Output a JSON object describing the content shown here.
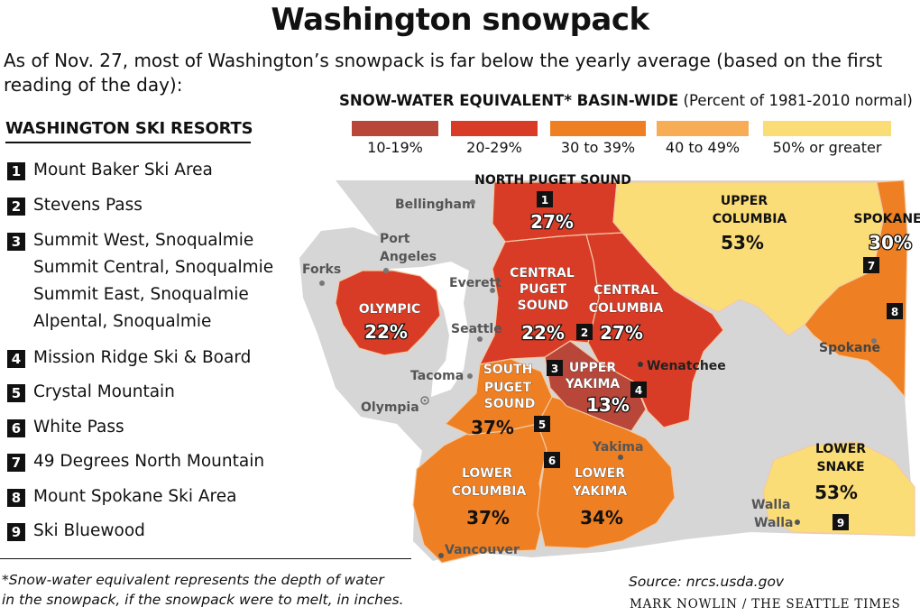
{
  "title": "Washington snowpack",
  "subtitle": "As of Nov. 27, most of Washington’s snowpack is far below the yearly average (based on the first reading of the day):",
  "legend": {
    "title_bold": "SNOW-WATER EQUIVALENT* BASIN-WIDE",
    "title_rest": " (Percent of 1981-2010 normal)",
    "items": [
      {
        "label": "10-19%",
        "color": "#b8473a"
      },
      {
        "label": "20-29%",
        "color": "#d93c26"
      },
      {
        "label": "30 to 39%",
        "color": "#ee7f22"
      },
      {
        "label": "40 to 49%",
        "color": "#f6ad55"
      },
      {
        "label": "50% or greater",
        "color": "#fbdd78"
      }
    ]
  },
  "resorts": {
    "title": "WASHINGTON SKI RESORTS",
    "items": [
      {
        "num": "1",
        "lines": [
          "Mount Baker Ski Area"
        ]
      },
      {
        "num": "2",
        "lines": [
          "Stevens Pass"
        ]
      },
      {
        "num": "3",
        "lines": [
          "Summit West, Snoqualmie",
          "Summit Central, Snoqualmie",
          "Summit East, Snoqualmie",
          "Alpental, Snoqualmie"
        ]
      },
      {
        "num": "4",
        "lines": [
          "Mission Ridge Ski & Board"
        ]
      },
      {
        "num": "5",
        "lines": [
          "Crystal Mountain"
        ]
      },
      {
        "num": "6",
        "lines": [
          "White Pass"
        ]
      },
      {
        "num": "7",
        "lines": [
          "49 Degrees North Mountain"
        ]
      },
      {
        "num": "8",
        "lines": [
          "Mount Spokane Ski Area"
        ]
      },
      {
        "num": "9",
        "lines": [
          "Ski Bluewood"
        ]
      }
    ]
  },
  "basins": {
    "north_puget": {
      "name": [
        "NORTH PUGET SOUND"
      ],
      "pct": "27%"
    },
    "upper_columbia": {
      "name": [
        "UPPER",
        "COLUMBIA"
      ],
      "pct": "53%"
    },
    "spokane": {
      "name": [
        "SPOKANE"
      ],
      "pct": "30%"
    },
    "olympic": {
      "name": [
        "OLYMPIC"
      ],
      "pct": "22%"
    },
    "central_puget": {
      "name": [
        "CENTRAL",
        "PUGET",
        "SOUND"
      ],
      "pct": "22%"
    },
    "central_columbia": {
      "name": [
        "CENTRAL",
        "COLUMBIA"
      ],
      "pct": "27%"
    },
    "upper_yakima": {
      "name": [
        "UPPER",
        "YAKIMA"
      ],
      "pct": "13%"
    },
    "south_puget": {
      "name": [
        "SOUTH",
        "PUGET",
        "SOUND"
      ],
      "pct": "37%"
    },
    "lower_columbia": {
      "name": [
        "LOWER",
        "COLUMBIA"
      ],
      "pct": "37%"
    },
    "lower_yakima": {
      "name": [
        "LOWER",
        "YAKIMA"
      ],
      "pct": "34%"
    },
    "lower_snake": {
      "name": [
        "LOWER",
        "SNAKE"
      ],
      "pct": "53%"
    }
  },
  "cities": [
    "Bellingham",
    "Port",
    "Angeles",
    "Forks",
    "Everett",
    "Seattle",
    "Tacoma",
    "Olympia",
    "Wenatchee",
    "Spokane",
    "Yakima",
    "Vancouver",
    "Walla",
    "Walla"
  ],
  "colors": {
    "land": "#d6d6d6",
    "water": "#ffffff"
  },
  "footnote": [
    "*Snow-water equivalent represents the depth of water",
    "in the snowpack, if the snowpack were to melt, in inches."
  ],
  "source": "Source: nrcs.usda.gov",
  "credit": "MARK NOWLIN / THE SEATTLE TIMES"
}
